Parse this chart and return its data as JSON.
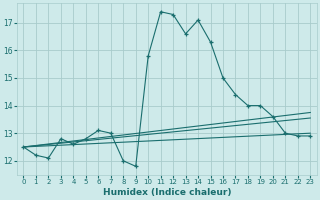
{
  "xlabel": "Humidex (Indice chaleur)",
  "ylabel": "",
  "background_color": "#ceeaea",
  "grid_color": "#a8cccc",
  "line_color": "#1a6e6e",
  "xlim": [
    -0.5,
    23.5
  ],
  "ylim": [
    11.5,
    17.7
  ],
  "yticks": [
    12,
    13,
    14,
    15,
    16,
    17
  ],
  "xticks": [
    0,
    1,
    2,
    3,
    4,
    5,
    6,
    7,
    8,
    9,
    10,
    11,
    12,
    13,
    14,
    15,
    16,
    17,
    18,
    19,
    20,
    21,
    22,
    23
  ],
  "line1_x": [
    0,
    1,
    2,
    3,
    4,
    5,
    6,
    7,
    8,
    9,
    10,
    11,
    12,
    13,
    14,
    15,
    16,
    17,
    18,
    19,
    20,
    21,
    22,
    23
  ],
  "line1_y": [
    12.5,
    12.2,
    12.1,
    12.8,
    12.6,
    12.8,
    13.1,
    13.0,
    12.0,
    11.8,
    15.8,
    17.4,
    17.3,
    16.6,
    17.1,
    16.3,
    15.0,
    14.4,
    14.0,
    14.0,
    13.6,
    13.0,
    12.9,
    12.9
  ],
  "line2_x": [
    0,
    23
  ],
  "line2_y": [
    12.5,
    13.0
  ],
  "line3_x": [
    0,
    23
  ],
  "line3_y": [
    12.5,
    13.55
  ],
  "line4_x": [
    0,
    23
  ],
  "line4_y": [
    12.5,
    13.75
  ]
}
